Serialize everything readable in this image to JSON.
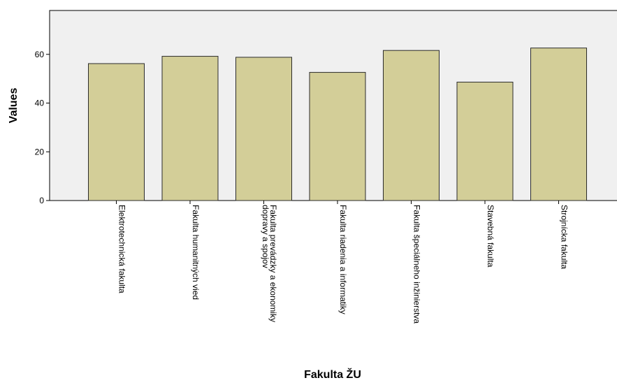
{
  "chart_data": {
    "type": "bar",
    "title": "",
    "xlabel": "Fakulta ŽU",
    "ylabel": "Values",
    "ylim": [
      0,
      78
    ],
    "yticks": [
      0,
      20,
      40,
      60
    ],
    "grid": false,
    "categories": [
      [
        "Elektrotechnická fakulta"
      ],
      [
        "Fakulta humanitných vied"
      ],
      [
        "Fakulta prevádzky a ekonomiky",
        "dopravy a spojov"
      ],
      [
        "Fakulta riadenia a informatiky"
      ],
      [
        "Fakulta špeciálneho inžinierstva"
      ],
      [
        "Stavebná fakulta"
      ],
      [
        "Strojnícka fakulta"
      ]
    ],
    "values": [
      56.2,
      59.2,
      58.8,
      52.6,
      61.6,
      48.6,
      62.6
    ],
    "colors": {
      "bar_fill": "#d3ce98",
      "bar_stroke": "#2b2b2b",
      "plot_background": "#f0f0f0",
      "axis": "#000000"
    }
  }
}
